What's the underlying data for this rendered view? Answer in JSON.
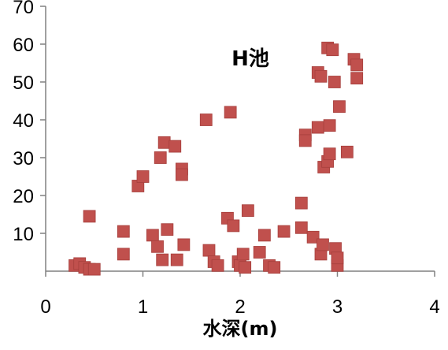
{
  "chart_data": {
    "type": "scatter",
    "title": "H池",
    "xlabel": "水深(m)",
    "ylabel": "",
    "xlim": [
      0,
      4
    ],
    "ylim": [
      0,
      70
    ],
    "x_ticks": [
      "0",
      "1",
      "2",
      "3",
      "4"
    ],
    "y_ticks": [
      "10",
      "20",
      "30",
      "40",
      "50",
      "60",
      "70"
    ],
    "grid": false,
    "legend": "none",
    "marker_color": "#c0504d",
    "series": [
      {
        "points": [
          [
            0.3,
            1.5
          ],
          [
            0.35,
            2.0
          ],
          [
            0.4,
            1.0
          ],
          [
            0.45,
            0.5
          ],
          [
            0.5,
            0.5
          ],
          [
            0.45,
            14.5
          ],
          [
            0.8,
            10.5
          ],
          [
            0.8,
            4.5
          ],
          [
            0.95,
            22.5
          ],
          [
            1.0,
            25.0
          ],
          [
            1.1,
            9.5
          ],
          [
            1.15,
            6.5
          ],
          [
            1.2,
            3.0
          ],
          [
            1.25,
            11.0
          ],
          [
            1.18,
            30.0
          ],
          [
            1.22,
            34.0
          ],
          [
            1.33,
            33.0
          ],
          [
            1.35,
            3.0
          ],
          [
            1.4,
            27.0
          ],
          [
            1.4,
            25.5
          ],
          [
            1.42,
            7.0
          ],
          [
            1.65,
            40.0
          ],
          [
            1.68,
            5.5
          ],
          [
            1.73,
            2.5
          ],
          [
            1.77,
            1.5
          ],
          [
            1.87,
            14.0
          ],
          [
            1.9,
            42.0
          ],
          [
            1.93,
            12.0
          ],
          [
            1.98,
            2.5
          ],
          [
            2.0,
            1.5
          ],
          [
            2.03,
            4.5
          ],
          [
            2.05,
            1.0
          ],
          [
            2.08,
            16.0
          ],
          [
            2.2,
            5.0
          ],
          [
            2.25,
            9.5
          ],
          [
            2.3,
            1.5
          ],
          [
            2.35,
            1.0
          ],
          [
            2.45,
            10.5
          ],
          [
            2.63,
            18.0
          ],
          [
            2.63,
            11.5
          ],
          [
            2.67,
            36.0
          ],
          [
            2.67,
            34.5
          ],
          [
            2.75,
            9.0
          ],
          [
            2.8,
            52.5
          ],
          [
            2.8,
            38.0
          ],
          [
            2.83,
            51.5
          ],
          [
            2.83,
            4.5
          ],
          [
            2.85,
            7.0
          ],
          [
            2.86,
            27.5
          ],
          [
            2.9,
            59.0
          ],
          [
            2.9,
            29.0
          ],
          [
            2.92,
            38.5
          ],
          [
            2.92,
            31.0
          ],
          [
            2.95,
            58.5
          ],
          [
            2.97,
            50.0
          ],
          [
            2.98,
            6.0
          ],
          [
            3.0,
            1.5
          ],
          [
            3.0,
            3.5
          ],
          [
            3.02,
            43.5
          ],
          [
            3.1,
            31.5
          ],
          [
            3.17,
            56.0
          ],
          [
            3.2,
            54.5
          ],
          [
            3.2,
            51.0
          ]
        ]
      }
    ]
  }
}
